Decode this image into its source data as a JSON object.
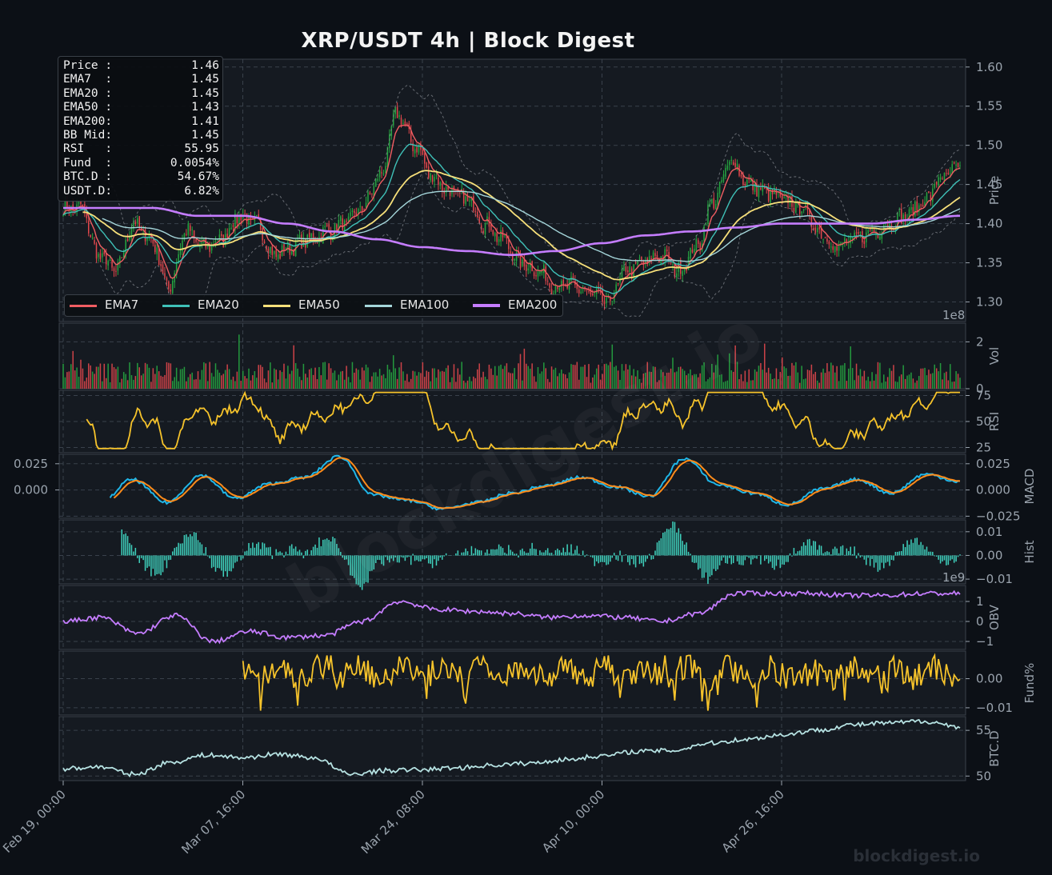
{
  "title": "XRP/USDT  4h  |  Block Digest",
  "watermark": "blockdigest.io",
  "footer": "blockdigest.io",
  "colors": {
    "background": "#0c1016",
    "panel": "#151a21",
    "grid": "#39414b",
    "up": "#26a641",
    "down": "#e0474c",
    "ema7": "#f05d62",
    "ema20": "#3fc1b8",
    "ema50": "#f7e07a",
    "ema100": "#a5d6da",
    "ema200": "#c57dff",
    "macd": "#1fb6e8",
    "signal": "#ff8c1a",
    "hist": "#3fd1bd",
    "obv": "#c57dff",
    "rsi": "#f6c32b",
    "fund": "#f6c32b",
    "btcd": "#b6e2e2"
  },
  "info_box": [
    {
      "key": "Price :",
      "value": "1.46"
    },
    {
      "key": "EMA7  :",
      "value": "1.45"
    },
    {
      "key": "EMA20 :",
      "value": "1.45"
    },
    {
      "key": "EMA50 :",
      "value": "1.43"
    },
    {
      "key": "EMA200:",
      "value": "1.41"
    },
    {
      "key": "BB Mid:",
      "value": "1.45"
    },
    {
      "key": "RSI   :",
      "value": "55.95"
    },
    {
      "key": "Fund  :",
      "value": "0.0054%"
    },
    {
      "key": "BTC.D :",
      "value": "54.67%"
    },
    {
      "key": "USDT.D:",
      "value": "6.82%"
    }
  ],
  "legend": [
    "EMA7",
    "EMA20",
    "EMA50",
    "EMA100",
    "EMA200"
  ],
  "chart_data": {
    "type": "line",
    "x_tick_labels": [
      "Feb 19, 00:00",
      "Mar 07, 16:00",
      "Mar 24, 08:00",
      "Apr 10, 00:00",
      "Apr 26, 16:00"
    ],
    "panels": [
      {
        "id": "price",
        "ylabel": "Price",
        "ylim": [
          1.275,
          1.61
        ],
        "ticks": [
          "1.30",
          "1.35",
          "1.40",
          "1.45",
          "1.50",
          "1.55",
          "1.60"
        ],
        "tick_values": [
          1.3,
          1.35,
          1.4,
          1.45,
          1.5,
          1.55,
          1.6
        ],
        "offset_label": "1e8",
        "key_close": [
          1.42,
          1.42,
          1.36,
          1.34,
          1.4,
          1.38,
          1.32,
          1.39,
          1.37,
          1.38,
          1.41,
          1.4,
          1.36,
          1.37,
          1.38,
          1.39,
          1.4,
          1.42,
          1.46,
          1.54,
          1.5,
          1.46,
          1.44,
          1.43,
          1.4,
          1.38,
          1.35,
          1.34,
          1.32,
          1.32,
          1.31,
          1.3,
          1.34,
          1.35,
          1.36,
          1.34,
          1.37,
          1.43,
          1.48,
          1.45,
          1.44,
          1.43,
          1.42,
          1.39,
          1.37,
          1.38,
          1.39,
          1.4,
          1.41,
          1.43,
          1.46,
          1.47
        ],
        "ema200_key": [
          1.42,
          1.42,
          1.42,
          1.41,
          1.41,
          1.4,
          1.39,
          1.38,
          1.37,
          1.365,
          1.36,
          1.365,
          1.375,
          1.385,
          1.39,
          1.395,
          1.4,
          1.4,
          1.4,
          1.405,
          1.41
        ]
      },
      {
        "id": "volume",
        "ylabel": "Vol",
        "ylim": [
          0,
          2.8
        ],
        "ticks": [
          "0",
          "2"
        ],
        "tick_values": [
          0,
          2
        ]
      },
      {
        "id": "rsi",
        "ylabel": "RSI",
        "ylim": [
          20,
          80
        ],
        "ticks": [
          "25",
          "50",
          "75"
        ],
        "tick_values": [
          25,
          50,
          75
        ]
      },
      {
        "id": "macd",
        "ylabel": "MACD",
        "ylim": [
          -0.027,
          0.034
        ],
        "ticks": [
          "−0.025",
          "0.000",
          "0.025"
        ],
        "tick_values": [
          -0.025,
          0,
          0.025
        ],
        "left_ticks": [
          "0.000",
          "0.025"
        ],
        "left_tick_values": [
          0,
          0.025
        ],
        "macd_key": [
          -0.011,
          -0.015,
          0.01,
          -0.012,
          0.014,
          -0.008,
          0.006,
          0.012,
          0.032,
          -0.005,
          -0.01,
          -0.018,
          -0.012,
          -0.003,
          0.004,
          0.012,
          0.003,
          -0.006,
          0.03,
          0.005,
          -0.003,
          -0.014,
          0.001,
          0.01,
          -0.003,
          0.015,
          0.008
        ]
      },
      {
        "id": "hist",
        "ylabel": "Hist",
        "ylim": [
          -0.012,
          0.015
        ],
        "ticks": [
          "−0.01",
          "0.00",
          "0.01"
        ],
        "tick_values": [
          -0.01,
          0,
          0.01
        ],
        "offset_label": "1e9"
      },
      {
        "id": "obv",
        "ylabel": "OBV",
        "ylim": [
          -1.4,
          1.8
        ],
        "ticks": [
          "−1",
          "0",
          "1"
        ],
        "tick_values": [
          -1,
          0,
          1
        ],
        "obv_key": [
          0.0,
          0.2,
          -0.6,
          0.3,
          -1.0,
          -0.5,
          -0.8,
          -0.7,
          0.0,
          1.0,
          0.6,
          0.5,
          0.4,
          0.2,
          0.3,
          0.2,
          0.0,
          0.4,
          1.4,
          1.4,
          1.4,
          1.3,
          1.3,
          1.4,
          1.4
        ]
      },
      {
        "id": "fund",
        "ylabel": "Fund%",
        "ylim": [
          -0.0125,
          0.0095
        ],
        "ticks": [
          "−0.01",
          "0.00"
        ],
        "tick_values": [
          -0.01,
          0
        ]
      },
      {
        "id": "btcd",
        "ylabel": "BTC.D",
        "ylim": [
          49.5,
          56.5
        ],
        "ticks": [
          "50",
          "55"
        ],
        "tick_values": [
          50,
          55
        ],
        "btcd_key": [
          50.8,
          51.0,
          50.2,
          51.5,
          52.3,
          52.0,
          52.4,
          52.0,
          50.2,
          50.6,
          50.7,
          50.9,
          51.2,
          51.4,
          51.8,
          52.2,
          52.7,
          52.8,
          53.6,
          54.0,
          54.5,
          55.0,
          55.6,
          55.8,
          56.0,
          55.4
        ]
      }
    ]
  }
}
